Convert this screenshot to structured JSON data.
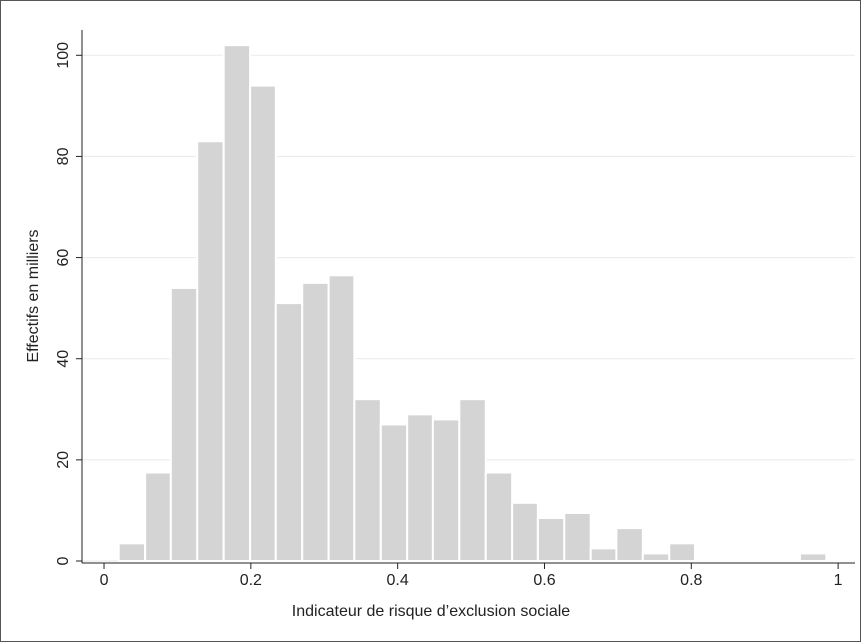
{
  "chart_data": {
    "type": "histogram",
    "x_label": "Indicateur de risque d’exclusion sociale",
    "y_label": "Effectifs en milliers",
    "bins": [
      0.02,
      0.056,
      0.091,
      0.127,
      0.163,
      0.199,
      0.234,
      0.27,
      0.306,
      0.341,
      0.377,
      0.413,
      0.448,
      0.484,
      0.52,
      0.556,
      0.591,
      0.627,
      0.663,
      0.698,
      0.734,
      0.77,
      0.805,
      0.841,
      0.877,
      0.913,
      0.948,
      0.984,
      1.02
    ],
    "values": [
      3.5,
      17.5,
      54,
      83,
      102,
      94,
      51,
      55,
      56.5,
      32,
      27,
      29,
      28,
      32,
      17.5,
      11.5,
      8.5,
      9.5,
      2.5,
      6.5,
      1.5,
      3.5,
      0.3,
      0.1,
      0.1,
      0.1,
      1.5,
      0.3
    ],
    "color": "#d4d4d4",
    "xlim": [
      -0.03,
      1.023
    ],
    "xticks": [
      0,
      0.2,
      0.4,
      0.6,
      0.8,
      1
    ],
    "ylim": [
      0,
      105
    ],
    "yticks": [
      0,
      20,
      40,
      60,
      80,
      100
    ],
    "grid": true
  }
}
